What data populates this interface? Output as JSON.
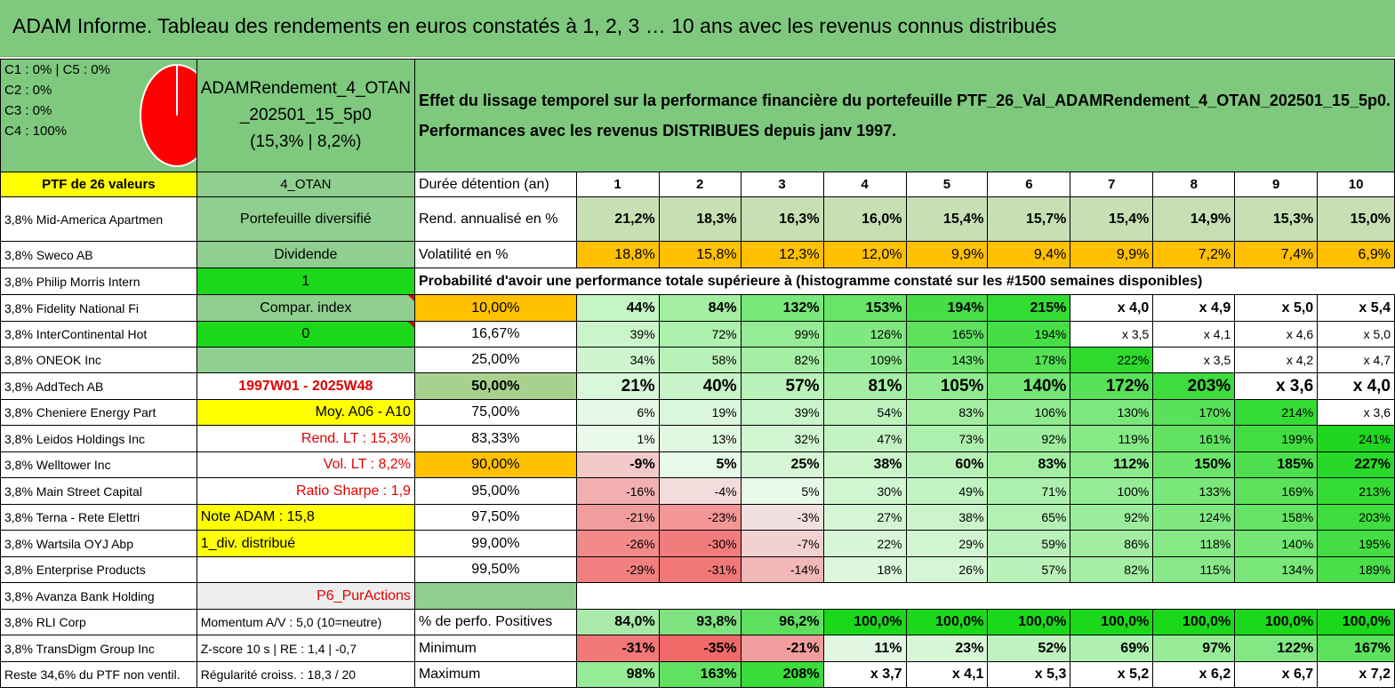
{
  "title": "ADAM Informe. Tableau des rendements en euros constatés à 1, 2, 3 … 10 ans avec les revenus connus distribués",
  "legend": [
    "C1 : 0% | C5 : 0%",
    "C2 : 0%",
    "C3 : 0%",
    "C4 : 100%"
  ],
  "pie_colors": {
    "fill": "#ff0000",
    "border": "#ffffff"
  },
  "fund": {
    "name_line1": "ADAMRendement_4_OTAN",
    "name_line2": "_202501_15_5p0",
    "name_line3": "(15,3% | 8,2%)"
  },
  "description": {
    "line1": "Effet du lissage temporel sur la performance financière du portefeuille PTF_26_Val_ADAMRendement_4_OTAN_202501_15_5p0.",
    "line2": "Performances avec les revenus DISTRIBUES depuis janv 1997."
  },
  "header": {
    "ptf": "PTF de 26 valeurs",
    "code": "4_OTAN",
    "duration_label": "Durée détention (an)",
    "years": [
      "1",
      "2",
      "3",
      "4",
      "5",
      "6",
      "7",
      "8",
      "9",
      "10"
    ]
  },
  "holdings": [
    "3,8% Mid-America Apartmen",
    "3,8% Sweco AB",
    "3,8% Philip Morris Intern",
    "3,8% Fidelity National Fi",
    "3,8% InterContinental Hot",
    "3,8% ONEOK Inc",
    "3,8% AddTech AB",
    "3,8% Cheniere Energy Part",
    "3,8% Leidos Holdings Inc",
    "3,8% Welltower Inc",
    "3,8% Main Street Capital",
    "3,8% Terna - Rete Elettri",
    "3,8% Wartsila OYJ Abp",
    "3,8% Enterprise Products",
    "3,8% Avanza Bank Holding",
    "3,8% RLI Corp",
    "3,8% TransDigm Group Inc",
    "Reste 34,6% du PTF non ventil."
  ],
  "info": {
    "diversified": "Portefeuille diversifié",
    "dividend": "Dividende",
    "one": "1",
    "compar": "Compar. index",
    "zero": "0",
    "empty": "",
    "period": "1997W01 - 2025W48",
    "moy": "Moy. A06 - A10",
    "rend_lt": "Rend. LT : 15,3%",
    "vol_lt": "Vol. LT : 8,2%",
    "sharpe": "Ratio Sharpe : 1,9",
    "note": "Note ADAM : 15,8",
    "div": "1_div. distribué",
    "empty2": "",
    "p6": "P6_PurActions",
    "momentum": "Momentum A/V : 5,0 (10=neutre)",
    "zscore": "Z-score 10 s | RE : 1,4 | -0,7",
    "regularite": "Régularité croiss. : 18,3 / 20"
  },
  "rend": {
    "label": "Rend. annualisé en %",
    "values": [
      "21,2%",
      "18,3%",
      "16,3%",
      "16,0%",
      "15,4%",
      "15,7%",
      "15,4%",
      "14,9%",
      "15,3%",
      "15,0%"
    ]
  },
  "vol": {
    "label": "Volatilité en %",
    "values": [
      "18,8%",
      "15,8%",
      "12,3%",
      "12,0%",
      "9,9%",
      "9,4%",
      "9,9%",
      "7,2%",
      "7,4%",
      "6,9%"
    ]
  },
  "proba_header": "Probabilité d'avoir une performance totale supérieure à (histogramme constaté sur les #1500 semaines disponibles)",
  "proba_rows": [
    {
      "p": "10,00%",
      "v": [
        "44%",
        "84%",
        "132%",
        "153%",
        "194%",
        "215%",
        "x 4,0",
        "x 4,9",
        "x 5,0",
        "x 5,4"
      ]
    },
    {
      "p": "16,67%",
      "v": [
        "39%",
        "72%",
        "99%",
        "126%",
        "165%",
        "194%",
        "x 3,5",
        "x 4,1",
        "x 4,6",
        "x 5,0"
      ]
    },
    {
      "p": "25,00%",
      "v": [
        "34%",
        "58%",
        "82%",
        "109%",
        "143%",
        "178%",
        "222%",
        "x 3,5",
        "x 4,2",
        "x 4,7"
      ]
    },
    {
      "p": "50,00%",
      "v": [
        "21%",
        "40%",
        "57%",
        "81%",
        "105%",
        "140%",
        "172%",
        "203%",
        "x 3,6",
        "x 4,0"
      ]
    },
    {
      "p": "75,00%",
      "v": [
        "6%",
        "19%",
        "39%",
        "54%",
        "83%",
        "106%",
        "130%",
        "170%",
        "214%",
        "x 3,6"
      ]
    },
    {
      "p": "83,33%",
      "v": [
        "1%",
        "13%",
        "32%",
        "47%",
        "73%",
        "92%",
        "119%",
        "161%",
        "199%",
        "241%"
      ]
    },
    {
      "p": "90,00%",
      "v": [
        "-9%",
        "5%",
        "25%",
        "38%",
        "60%",
        "83%",
        "112%",
        "150%",
        "185%",
        "227%"
      ]
    },
    {
      "p": "95,00%",
      "v": [
        "-16%",
        "-4%",
        "5%",
        "30%",
        "49%",
        "71%",
        "100%",
        "133%",
        "169%",
        "213%"
      ]
    },
    {
      "p": "97,50%",
      "v": [
        "-21%",
        "-23%",
        "-3%",
        "27%",
        "38%",
        "65%",
        "92%",
        "124%",
        "158%",
        "203%"
      ]
    },
    {
      "p": "99,00%",
      "v": [
        "-26%",
        "-30%",
        "-7%",
        "22%",
        "29%",
        "59%",
        "86%",
        "118%",
        "140%",
        "195%"
      ]
    },
    {
      "p": "99,50%",
      "v": [
        "-29%",
        "-31%",
        "-14%",
        "18%",
        "26%",
        "57%",
        "82%",
        "115%",
        "134%",
        "189%"
      ]
    }
  ],
  "positives": {
    "label": "% de perfo. Positives",
    "values": [
      "84,0%",
      "93,8%",
      "96,2%",
      "100,0%",
      "100,0%",
      "100,0%",
      "100,0%",
      "100,0%",
      "100,0%",
      "100,0%"
    ]
  },
  "minimum": {
    "label": "Minimum",
    "values": [
      "-31%",
      "-35%",
      "-21%",
      "11%",
      "23%",
      "52%",
      "69%",
      "97%",
      "122%",
      "167%"
    ]
  },
  "maximum": {
    "label": "Maximum",
    "values": [
      "98%",
      "163%",
      "208%",
      "x 3,7",
      "x 4,1",
      "x 5,3",
      "x 5,2",
      "x 6,2",
      "x 6,7",
      "x 7,2"
    ]
  }
}
